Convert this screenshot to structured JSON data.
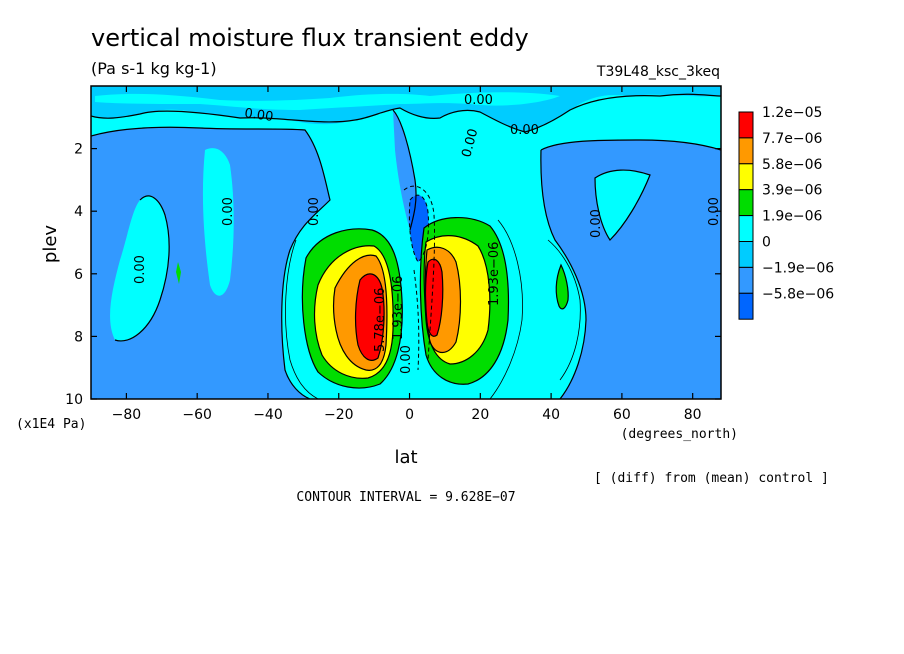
{
  "chart_data": {
    "type": "heatmap",
    "title": "vertical moisture flux transient eddy",
    "units": "(Pa s-1 kg kg-1)",
    "run_label": "T39L48_ksc_3keq",
    "xlabel": "lat",
    "x_units": "(degrees_north)",
    "ylabel": "plev",
    "y_units": "(x1E4 Pa)",
    "xlim": [
      -90,
      88
    ],
    "ylim": [
      0,
      10
    ],
    "y_inverted": true,
    "x_ticks": [
      -80,
      -60,
      -40,
      -20,
      0,
      20,
      40,
      60,
      80
    ],
    "x_tick_labels": [
      "−80",
      "−60",
      "−40",
      "−20",
      "0",
      "20",
      "40",
      "60",
      "80"
    ],
    "y_ticks": [
      2,
      4,
      6,
      8,
      10
    ],
    "y_tick_labels": [
      "2",
      "4",
      "6",
      "8",
      "10"
    ],
    "colorbar": {
      "levels": [
        "1.2e−05",
        "7.7e−06",
        "5.8e−06",
        "3.9e−06",
        "1.9e−06",
        "0",
        "−1.9e−06",
        "−5.8e−06"
      ],
      "colors": [
        "#ff0000",
        "#ff9900",
        "#ffff00",
        "#00dd00",
        "#00ffff",
        "#00ccff",
        "#3399ff",
        "#0066ff"
      ]
    },
    "contour_labels": [
      "0.00",
      "0.00",
      "0.00",
      "0.00",
      "0.00",
      "0.00",
      "0.00",
      "0.00",
      "0.00",
      "1.93e−06",
      "1.93e−06",
      "5.78e−06",
      "0.00"
    ],
    "fields": [
      {
        "name": "upper_background",
        "lat_range": [
          -90,
          88
        ],
        "plev_range": [
          0,
          2.5
        ],
        "level": "0"
      },
      {
        "name": "sh_subtropics",
        "lat_range": [
          -78,
          -40
        ],
        "plev_range": [
          1.5,
          10
        ],
        "level": "−1.9e−06"
      },
      {
        "name": "nh_subtropics",
        "lat_range": [
          55,
          88
        ],
        "plev_range": [
          2,
          10
        ],
        "level": "−1.9e−06"
      },
      {
        "name": "sh_tropical_max",
        "lat": -10,
        "plev": 7.5,
        "value_band": "1.2e−05"
      },
      {
        "name": "nh_tropical_max",
        "lat": 7,
        "plev": 7,
        "value_band": "1.2e−05"
      },
      {
        "name": "equatorial_min",
        "lat": 3,
        "plev": 5,
        "value_band": "−1.9e−06"
      },
      {
        "name": "nh_midlat_max",
        "lat": 43,
        "plev": 7,
        "value_band": "1.9e−06"
      }
    ],
    "annotation_right": "[ (diff) from (mean) control ]",
    "contour_interval": "CONTOUR INTERVAL = 9.628E−07"
  }
}
